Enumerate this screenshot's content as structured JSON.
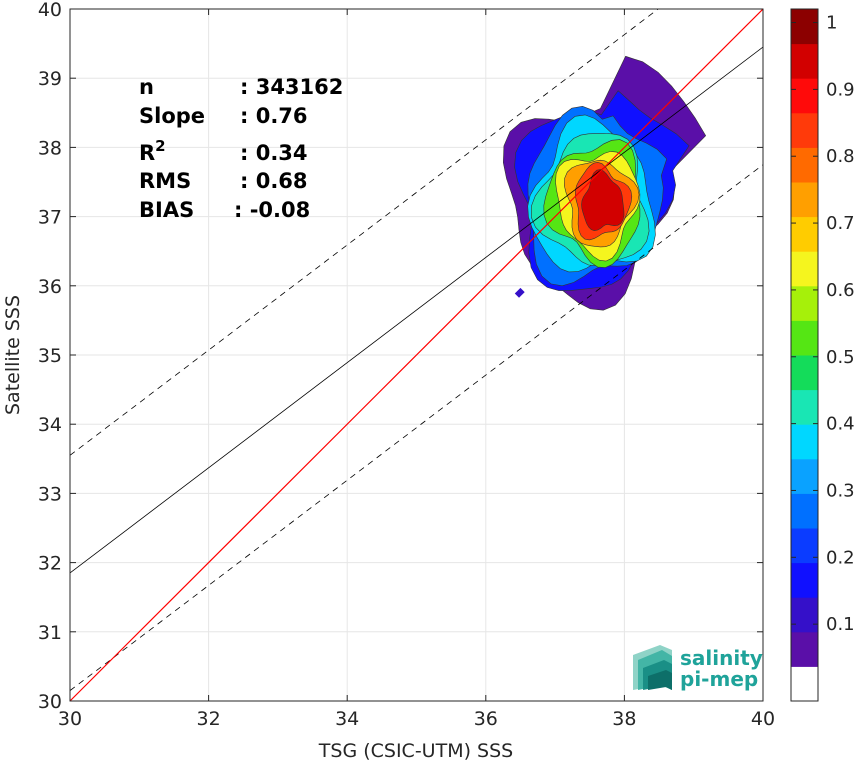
{
  "chart_data": {
    "type": "contour-scatter",
    "xlabel": "TSG (CSIC-UTM) SSS",
    "ylabel": "Satellite SSS",
    "xlim": [
      30,
      40
    ],
    "ylim": [
      30,
      40
    ],
    "xticks": [
      30,
      32,
      34,
      36,
      38,
      40
    ],
    "yticks": [
      30,
      31,
      32,
      33,
      34,
      35,
      36,
      37,
      38,
      39,
      40
    ],
    "grid": true,
    "stats": [
      {
        "label": "n",
        "value": ": 343162"
      },
      {
        "label": "Slope",
        "value": ": 0.76"
      },
      {
        "label": "R",
        "sup": "2",
        "value": ": 0.34"
      },
      {
        "label": "RMS",
        "value": ": 0.68"
      },
      {
        "label": "BIAS",
        "value": ": -0.08"
      }
    ],
    "lines": {
      "identity": {
        "color": "#ff0000",
        "x": [
          30,
          40
        ],
        "y": [
          30,
          40
        ]
      },
      "fit": {
        "color": "#000000",
        "slope": 0.76,
        "intercept": 9.05
      },
      "fit_upper_dashed": {
        "color": "#000000",
        "slope": 0.76,
        "intercept": 10.75
      },
      "fit_lower_dashed": {
        "color": "#000000",
        "slope": 0.76,
        "intercept": 7.35
      }
    },
    "density_center": {
      "x": 37.7,
      "y": 37.2
    },
    "colorbar": {
      "ticks": [
        "0.1",
        "0.2",
        "0.3",
        "0.4",
        "0.5",
        "0.6",
        "0.7",
        "0.8",
        "0.9",
        "1"
      ],
      "colors": [
        "#ffffff",
        "#5a0fa8",
        "#3510c9",
        "#1010ff",
        "#0b3cff",
        "#0070ff",
        "#0aa2ff",
        "#00d7ff",
        "#19e6b4",
        "#14dc5a",
        "#55e614",
        "#a6f00a",
        "#f5f51e",
        "#ffcc00",
        "#ff9f00",
        "#ff6a00",
        "#ff3a0a",
        "#ff0a0a",
        "#d20000",
        "#8c0000"
      ]
    },
    "contour_levels": [
      {
        "level": 0.05,
        "color": "#5a0fa8"
      },
      {
        "level": 0.15,
        "color": "#1010ff"
      },
      {
        "level": 0.25,
        "color": "#0070ff"
      },
      {
        "level": 0.35,
        "color": "#00d7ff"
      },
      {
        "level": 0.45,
        "color": "#19e6b4"
      },
      {
        "level": 0.55,
        "color": "#55e614"
      },
      {
        "level": 0.65,
        "color": "#f5f51e"
      },
      {
        "level": 0.75,
        "color": "#ff9f00"
      },
      {
        "level": 0.85,
        "color": "#ff3a0a"
      },
      {
        "level": 0.95,
        "color": "#d20000"
      }
    ]
  },
  "logo": {
    "line1": "salinity",
    "line2": "pi-mep"
  }
}
